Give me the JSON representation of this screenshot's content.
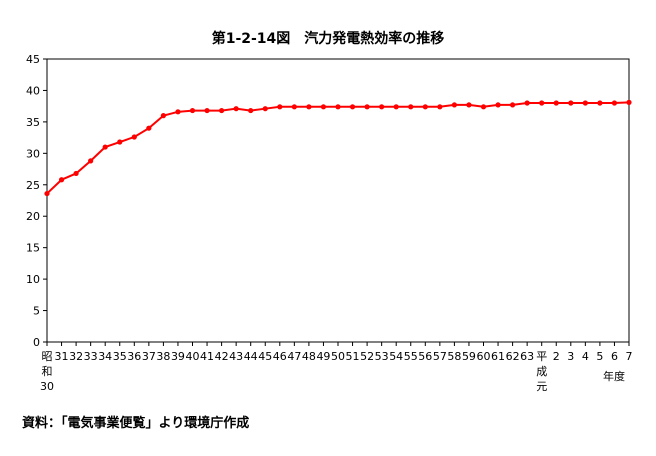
{
  "chart_data": {
    "type": "line",
    "title": "第1-2-14図　汽力発電熱効率の推移",
    "xlabel": "年度",
    "ylabel": "",
    "ylim": [
      0,
      45
    ],
    "yticks": [
      "0",
      "5",
      "10",
      "15",
      "20",
      "25",
      "30",
      "35",
      "40",
      "45"
    ],
    "grid": false,
    "line_color": "#ff0000",
    "x_tick_labels": [
      "昭\n和\n30",
      "31",
      "32",
      "33",
      "34",
      "35",
      "36",
      "37",
      "38",
      "39",
      "40",
      "41",
      "42",
      "43",
      "44",
      "45",
      "46",
      "47",
      "48",
      "49",
      "50",
      "51",
      "52",
      "53",
      "54",
      "55",
      "56",
      "57",
      "58",
      "59",
      "60",
      "61",
      "62",
      "63",
      "平\n成\n元",
      "2",
      "3",
      "4",
      "5",
      "6",
      "7"
    ],
    "values": [
      23.6,
      25.8,
      26.8,
      28.8,
      31.0,
      31.8,
      32.6,
      34.0,
      36.0,
      36.6,
      36.8,
      36.8,
      36.8,
      37.1,
      36.8,
      37.1,
      37.4,
      37.4,
      37.4,
      37.4,
      37.4,
      37.4,
      37.4,
      37.4,
      37.4,
      37.4,
      37.4,
      37.4,
      37.7,
      37.7,
      37.4,
      37.7,
      37.7,
      38.0,
      38.0,
      38.0,
      38.0,
      38.0,
      38.0,
      38.0,
      38.1
    ]
  },
  "source": "資料：「電気事業便覧」より環境庁作成"
}
